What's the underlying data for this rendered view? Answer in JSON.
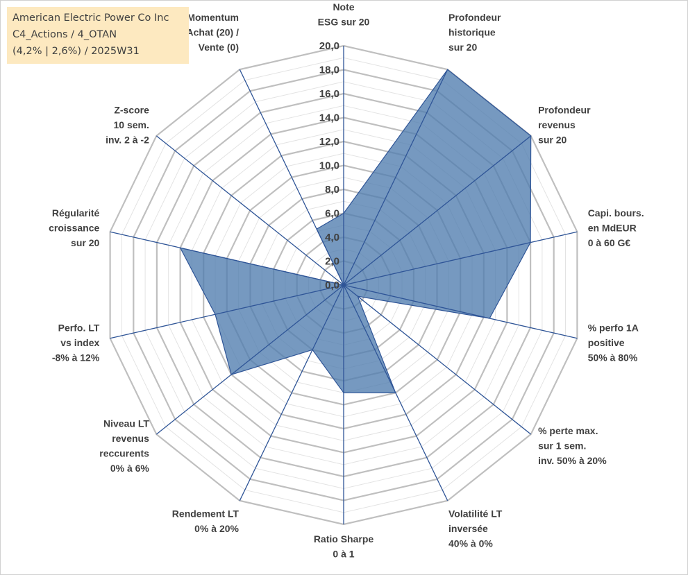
{
  "title_box": {
    "line1": "American Electric Power Co Inc",
    "line2": "C4_Actions / 4_OTAN",
    "line3": "(4,2% | 2,6%) / 2025W31"
  },
  "colors": {
    "fill": "#4f7cae",
    "stroke": "#2f5597",
    "grid_major": "#bfbfbf",
    "grid_minor": "#e3e3e3",
    "spoke": "#2f5597",
    "title_bg": "#fde9c0"
  },
  "chart_data": {
    "type": "radar",
    "title": "",
    "rmin": 0,
    "rmax": 20,
    "tick_step": 2,
    "minor_step": 1,
    "tick_labels": [
      "0,0",
      "2,0",
      "4,0",
      "6,0",
      "8,0",
      "10,0",
      "12,0",
      "14,0",
      "16,0",
      "18,0",
      "20,0"
    ],
    "categories": [
      [
        "Note",
        "ESG sur 20"
      ],
      [
        "Profondeur",
        "historique",
        "sur 20"
      ],
      [
        "Profondeur",
        "revenus",
        "sur 20"
      ],
      [
        "Capi. bours.",
        "en MdEUR",
        "0 à 60 G€"
      ],
      [
        "% perfo 1A",
        "positive",
        "50% à 80%"
      ],
      [
        "% perte max.",
        "sur 1 sem.",
        "inv. 50% à 20%"
      ],
      [
        "Volatilité LT",
        "inversée",
        "40% à 0%"
      ],
      [
        "Ratio Sharpe",
        "0 à 1"
      ],
      [
        "Rendement LT",
        "0% à 20%"
      ],
      [
        "Niveau LT",
        "revenus",
        "reccurents",
        "0% à 6%"
      ],
      [
        "Perfo. LT",
        "vs index",
        "-8% à 12%"
      ],
      [
        "Régularité",
        "croissance",
        "sur 20"
      ],
      [
        "Z-score",
        "10 sem.",
        "inv. 2 à -2"
      ],
      [
        "Momentum",
        "Achat (20) /",
        "Vente (0)"
      ]
    ],
    "series": [
      {
        "values": [
          6.0,
          20.0,
          20.0,
          16.0,
          12.5,
          1.5,
          10.0,
          9.0,
          6.0,
          12.0,
          11.0,
          14.0,
          0.0,
          5.2
        ]
      }
    ]
  }
}
